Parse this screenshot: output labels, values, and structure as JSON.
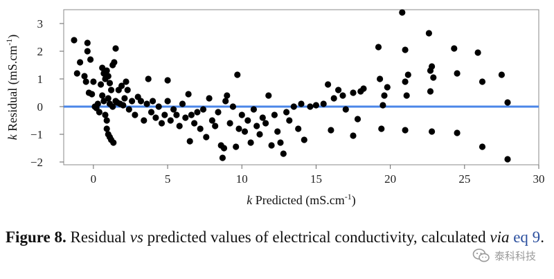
{
  "chart_data": {
    "type": "scatter",
    "title": "",
    "xlabel": {
      "italic": "k",
      "text": " Predicted (mS.cm",
      "sup": "-1",
      "end": ")"
    },
    "ylabel": {
      "italic": "k",
      "text": " Residual (mS.cm",
      "sup": "-1",
      "end": ")"
    },
    "xlim": [
      -2,
      30
    ],
    "ylim": [
      -2.1,
      3.5
    ],
    "xticks": [
      "0",
      "5",
      "10",
      "15",
      "20",
      "25",
      "30"
    ],
    "yticks": [
      "-2",
      "-1",
      "0",
      "1",
      "2",
      "3"
    ],
    "reference_line": {
      "y": 0,
      "color": "#4a86e8"
    },
    "point_color": "#000000",
    "points": [
      [
        -1.3,
        2.4
      ],
      [
        -1.1,
        1.2
      ],
      [
        -0.9,
        1.6
      ],
      [
        -0.6,
        1.1
      ],
      [
        -0.4,
        2.3
      ],
      [
        -0.4,
        2.0
      ],
      [
        -0.2,
        1.7
      ],
      [
        -0.5,
        0.9
      ],
      [
        -0.3,
        0.5
      ],
      [
        -0.1,
        0.45
      ],
      [
        0.0,
        0.9
      ],
      [
        0.1,
        0.0
      ],
      [
        0.2,
        -0.05
      ],
      [
        0.3,
        0.1
      ],
      [
        0.4,
        -0.2
      ],
      [
        0.5,
        0.8
      ],
      [
        0.6,
        1.4
      ],
      [
        0.7,
        1.2
      ],
      [
        0.8,
        1.0
      ],
      [
        0.9,
        1.3
      ],
      [
        1.0,
        1.1
      ],
      [
        1.1,
        0.85
      ],
      [
        1.2,
        0.6
      ],
      [
        1.3,
        1.5
      ],
      [
        1.4,
        1.6
      ],
      [
        1.5,
        2.1
      ],
      [
        0.9,
        -0.8
      ],
      [
        1.0,
        -1.0
      ],
      [
        1.1,
        -1.1
      ],
      [
        1.2,
        -1.2
      ],
      [
        1.35,
        -1.3
      ],
      [
        0.6,
        0.4
      ],
      [
        0.7,
        0.2
      ],
      [
        0.8,
        -0.3
      ],
      [
        0.9,
        -0.5
      ],
      [
        1.0,
        0.3
      ],
      [
        1.1,
        0.1
      ],
      [
        1.3,
        0.0
      ],
      [
        1.5,
        0.2
      ],
      [
        1.6,
        0.15
      ],
      [
        1.8,
        0.1
      ],
      [
        2.0,
        0.05
      ],
      [
        1.7,
        0.6
      ],
      [
        1.9,
        0.75
      ],
      [
        2.2,
        0.9
      ],
      [
        2.3,
        0.6
      ],
      [
        2.1,
        0.3
      ],
      [
        2.4,
        -0.1
      ],
      [
        2.6,
        0.2
      ],
      [
        2.8,
        -0.3
      ],
      [
        3.0,
        0.35
      ],
      [
        3.2,
        0.2
      ],
      [
        3.4,
        -0.5
      ],
      [
        3.6,
        0.1
      ],
      [
        3.7,
        1.0
      ],
      [
        3.9,
        -0.2
      ],
      [
        4.0,
        0.2
      ],
      [
        4.2,
        -0.4
      ],
      [
        4.4,
        0.0
      ],
      [
        4.6,
        -0.6
      ],
      [
        4.8,
        -0.3
      ],
      [
        5.0,
        0.95
      ],
      [
        5.0,
        0.2
      ],
      [
        5.2,
        -0.5
      ],
      [
        5.4,
        -0.1
      ],
      [
        5.6,
        -0.3
      ],
      [
        5.8,
        -0.7
      ],
      [
        6.0,
        0.1
      ],
      [
        6.2,
        -0.4
      ],
      [
        6.4,
        0.45
      ],
      [
        6.5,
        -1.25
      ],
      [
        6.6,
        -0.3
      ],
      [
        6.8,
        -0.6
      ],
      [
        7.0,
        -0.2
      ],
      [
        7.2,
        -0.8
      ],
      [
        7.4,
        -0.1
      ],
      [
        7.6,
        -1.1
      ],
      [
        7.8,
        0.3
      ],
      [
        8.0,
        -0.5
      ],
      [
        8.2,
        -0.7
      ],
      [
        8.4,
        -0.2
      ],
      [
        8.6,
        -1.4
      ],
      [
        8.7,
        -1.85
      ],
      [
        8.8,
        -1.5
      ],
      [
        8.9,
        0.2
      ],
      [
        9.0,
        0.4
      ],
      [
        9.2,
        -0.6
      ],
      [
        9.4,
        0.0
      ],
      [
        9.7,
        1.15
      ],
      [
        9.6,
        -1.45
      ],
      [
        9.8,
        -0.8
      ],
      [
        10.0,
        -0.3
      ],
      [
        10.2,
        -0.9
      ],
      [
        10.4,
        -0.5
      ],
      [
        10.6,
        -1.3
      ],
      [
        10.8,
        -0.1
      ],
      [
        11.0,
        -0.7
      ],
      [
        11.2,
        -1.0
      ],
      [
        11.4,
        -0.4
      ],
      [
        11.6,
        -0.6
      ],
      [
        11.8,
        0.4
      ],
      [
        12.0,
        -1.4
      ],
      [
        12.2,
        -0.3
      ],
      [
        12.4,
        -0.9
      ],
      [
        12.6,
        -1.3
      ],
      [
        12.8,
        -1.7
      ],
      [
        13.0,
        -0.2
      ],
      [
        13.2,
        -0.5
      ],
      [
        13.5,
        0.0
      ],
      [
        13.8,
        -0.8
      ],
      [
        14.0,
        0.1
      ],
      [
        14.2,
        -1.2
      ],
      [
        14.6,
        0.0
      ],
      [
        15.0,
        0.05
      ],
      [
        15.5,
        0.1
      ],
      [
        15.8,
        0.8
      ],
      [
        16.0,
        -0.85
      ],
      [
        16.2,
        0.3
      ],
      [
        16.5,
        0.6
      ],
      [
        16.8,
        0.4
      ],
      [
        17.0,
        -0.1
      ],
      [
        17.5,
        0.5
      ],
      [
        17.5,
        -1.05
      ],
      [
        17.8,
        -0.45
      ],
      [
        18.0,
        0.55
      ],
      [
        18.2,
        0.65
      ],
      [
        19.2,
        2.15
      ],
      [
        19.3,
        1.0
      ],
      [
        19.4,
        -0.8
      ],
      [
        19.5,
        0.05
      ],
      [
        19.6,
        0.4
      ],
      [
        19.8,
        0.7
      ],
      [
        20.8,
        3.4
      ],
      [
        21.0,
        2.05
      ],
      [
        21.2,
        1.15
      ],
      [
        21.1,
        0.4
      ],
      [
        21.0,
        0.9
      ],
      [
        21.0,
        -0.85
      ],
      [
        22.6,
        2.65
      ],
      [
        22.8,
        1.45
      ],
      [
        22.7,
        1.3
      ],
      [
        22.9,
        1.05
      ],
      [
        22.7,
        0.55
      ],
      [
        22.8,
        -0.9
      ],
      [
        24.3,
        2.1
      ],
      [
        24.5,
        1.2
      ],
      [
        24.5,
        -0.95
      ],
      [
        25.9,
        1.95
      ],
      [
        26.2,
        0.9
      ],
      [
        26.2,
        -1.45
      ],
      [
        27.5,
        1.15
      ],
      [
        27.9,
        0.15
      ],
      [
        27.9,
        -1.9
      ]
    ]
  },
  "caption": {
    "label": "Figure 8.",
    "part1": " Residual ",
    "vs": "vs",
    "part2": " predicted values of electrical conductivity, calculated ",
    "via": "via",
    "space": " ",
    "link": "eq 9",
    "end": "."
  },
  "watermark": {
    "icon": "wechat-icon",
    "text": "泰科科技"
  }
}
